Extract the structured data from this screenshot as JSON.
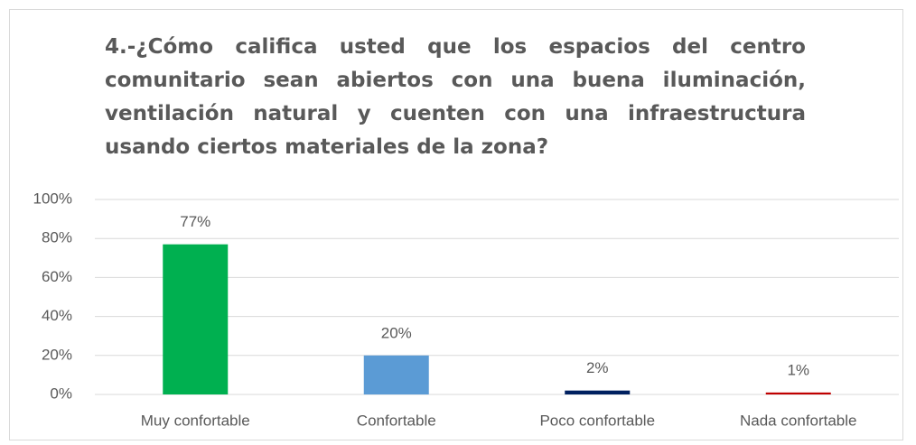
{
  "chart_data": {
    "type": "bar",
    "title": "4.-¿Cómo califica usted que los espacios del centro comunitario sean abiertos con una buena iluminación, ventilación natural y cuenten con una infraestructura usando ciertos materiales de la zona?",
    "categories": [
      "Muy confortable",
      "Confortable",
      "Poco confortable",
      "Nada confortable"
    ],
    "values": [
      77,
      20,
      2,
      1
    ],
    "value_labels": [
      "77%",
      "20%",
      "2%",
      "1%"
    ],
    "colors": [
      "#00b050",
      "#5b9bd5",
      "#002060",
      "#c00000"
    ],
    "ylim": [
      0,
      100
    ],
    "yticks": [
      {
        "value": 0,
        "label": "0%"
      },
      {
        "value": 20,
        "label": "20%"
      },
      {
        "value": 40,
        "label": "40%"
      },
      {
        "value": 60,
        "label": "60%"
      },
      {
        "value": 80,
        "label": "80%"
      },
      {
        "value": 100,
        "label": "100%"
      }
    ],
    "grid": true
  }
}
